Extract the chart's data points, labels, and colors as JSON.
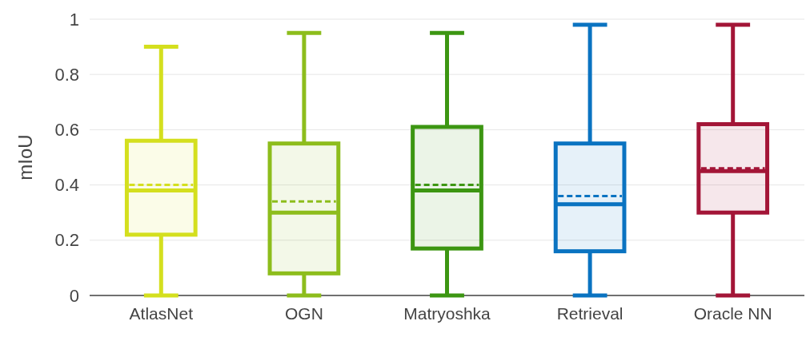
{
  "chart_data": {
    "type": "box",
    "ylabel": "mIoU",
    "categories": [
      "AtlasNet",
      "OGN",
      "Matryoshka",
      "Retrieval",
      "Oracle NN"
    ],
    "series": [
      {
        "color": "#d4df1e",
        "boxes": [
          {
            "low": 0,
            "q1": 0.22,
            "median": 0.38,
            "q3": 0.56,
            "high": 0.9,
            "mean": 0.4
          },
          null,
          null,
          null,
          null
        ]
      },
      {
        "color": "#8dbd1c",
        "boxes": [
          null,
          {
            "low": 0,
            "q1": 0.08,
            "median": 0.3,
            "q3": 0.55,
            "high": 0.95,
            "mean": 0.34
          },
          null,
          null,
          null
        ]
      },
      {
        "color": "#3c9612",
        "boxes": [
          null,
          null,
          {
            "low": 0,
            "q1": 0.17,
            "median": 0.38,
            "q3": 0.61,
            "high": 0.95,
            "mean": 0.4
          },
          null,
          null
        ]
      },
      {
        "color": "#0a73c1",
        "boxes": [
          null,
          null,
          null,
          {
            "low": 0,
            "q1": 0.16,
            "median": 0.33,
            "q3": 0.55,
            "high": 0.98,
            "mean": 0.36
          },
          null
        ]
      },
      {
        "color": "#a31537",
        "boxes": [
          null,
          null,
          null,
          null,
          {
            "low": 0,
            "q1": 0.3,
            "median": 0.45,
            "q3": 0.62,
            "high": 0.98,
            "mean": 0.46
          }
        ]
      }
    ],
    "ylim": [
      0,
      1
    ],
    "yticks": [
      0,
      0.2,
      0.4,
      0.6,
      0.8,
      1
    ],
    "grid": "y"
  }
}
